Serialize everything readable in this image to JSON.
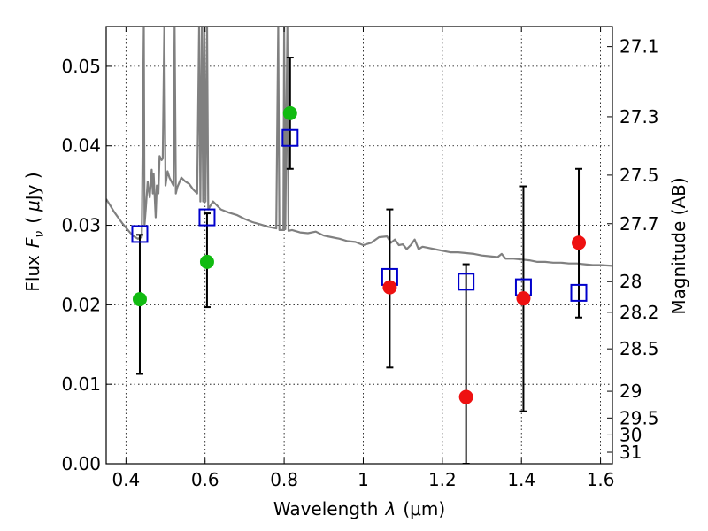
{
  "chart_data": {
    "type": "scatter",
    "xlabel_text": "Wavelength",
    "xlabel_symbol": "λ",
    "xlabel_unit": "(μm)",
    "ylabel_text": "Flux",
    "ylabel_symbol": "F",
    "ylabel_subscript": "ν",
    "ylabel_unit_open": "(",
    "ylabel_unit_mu": "μ",
    "ylabel_unit_rest": "Jy )",
    "y2label": "Magnitude (AB)",
    "xlim": [
      0.35,
      1.63
    ],
    "ylim": [
      0.0,
      0.055
    ],
    "grid": true,
    "x_ticks": [
      {
        "v": 0.4,
        "label": "0.4"
      },
      {
        "v": 0.6,
        "label": "0.6"
      },
      {
        "v": 0.8,
        "label": "0.8"
      },
      {
        "v": 1.0,
        "label": "1"
      },
      {
        "v": 1.2,
        "label": "1.2"
      },
      {
        "v": 1.4,
        "label": "1.4"
      },
      {
        "v": 1.6,
        "label": "1.6"
      }
    ],
    "y_ticks": [
      {
        "v": 0.0,
        "label": "0.00"
      },
      {
        "v": 0.01,
        "label": "0.01"
      },
      {
        "v": 0.02,
        "label": "0.02"
      },
      {
        "v": 0.03,
        "label": "0.03"
      },
      {
        "v": 0.04,
        "label": "0.04"
      },
      {
        "v": 0.05,
        "label": "0.05"
      }
    ],
    "y2_ticks": [
      {
        "mag": 27.1,
        "label": "27.1"
      },
      {
        "mag": 27.3,
        "label": "27.3"
      },
      {
        "mag": 27.5,
        "label": "27.5"
      },
      {
        "mag": 27.7,
        "label": "27.7"
      },
      {
        "mag": 28.0,
        "label": "28"
      },
      {
        "mag": 28.2,
        "label": "28.2"
      },
      {
        "mag": 28.5,
        "label": "28.5"
      },
      {
        "mag": 29.0,
        "label": "29"
      },
      {
        "mag": 29.5,
        "label": "29.5"
      },
      {
        "mag": 30.0,
        "label": "30"
      },
      {
        "mag": 31.0,
        "label": "31"
      }
    ],
    "series": [
      {
        "kind": "line",
        "color": "#808080",
        "points": [
          [
            0.35,
            0.0333
          ],
          [
            0.36,
            0.0325
          ],
          [
            0.37,
            0.0317
          ],
          [
            0.38,
            0.031
          ],
          [
            0.39,
            0.0303
          ],
          [
            0.4,
            0.0297
          ],
          [
            0.41,
            0.0291
          ],
          [
            0.42,
            0.0286
          ],
          [
            0.43,
            0.0283
          ],
          [
            0.44,
            0.0285
          ],
          [
            0.445,
            0.055
          ],
          [
            0.447,
            0.03
          ],
          [
            0.45,
            0.032
          ],
          [
            0.455,
            0.0355
          ],
          [
            0.46,
            0.0335
          ],
          [
            0.465,
            0.037
          ],
          [
            0.468,
            0.034
          ],
          [
            0.47,
            0.0365
          ],
          [
            0.475,
            0.031
          ],
          [
            0.478,
            0.035
          ],
          [
            0.482,
            0.034
          ],
          [
            0.485,
            0.0387
          ],
          [
            0.49,
            0.0382
          ],
          [
            0.493,
            0.0384
          ],
          [
            0.497,
            0.055
          ],
          [
            0.5,
            0.035
          ],
          [
            0.505,
            0.0368
          ],
          [
            0.51,
            0.036
          ],
          [
            0.52,
            0.035
          ],
          [
            0.523,
            0.055
          ],
          [
            0.526,
            0.034
          ],
          [
            0.53,
            0.0348
          ],
          [
            0.54,
            0.036
          ],
          [
            0.55,
            0.0355
          ],
          [
            0.56,
            0.0352
          ],
          [
            0.57,
            0.0345
          ],
          [
            0.58,
            0.034
          ],
          [
            0.585,
            0.055
          ],
          [
            0.588,
            0.033
          ],
          [
            0.592,
            0.055
          ],
          [
            0.595,
            0.033
          ],
          [
            0.598,
            0.055
          ],
          [
            0.601,
            0.033
          ],
          [
            0.605,
            0.055
          ],
          [
            0.608,
            0.032
          ],
          [
            0.62,
            0.033
          ],
          [
            0.64,
            0.032
          ],
          [
            0.66,
            0.0316
          ],
          [
            0.68,
            0.0313
          ],
          [
            0.7,
            0.0308
          ],
          [
            0.72,
            0.0304
          ],
          [
            0.74,
            0.0301
          ],
          [
            0.76,
            0.0298
          ],
          [
            0.78,
            0.0296
          ],
          [
            0.785,
            0.055
          ],
          [
            0.788,
            0.0294
          ],
          [
            0.798,
            0.0294
          ],
          [
            0.8,
            0.055
          ],
          [
            0.803,
            0.0295
          ],
          [
            0.808,
            0.055
          ],
          [
            0.811,
            0.0293
          ],
          [
            0.82,
            0.0294
          ],
          [
            0.84,
            0.0291
          ],
          [
            0.86,
            0.029
          ],
          [
            0.88,
            0.0292
          ],
          [
            0.9,
            0.0287
          ],
          [
            0.92,
            0.0285
          ],
          [
            0.94,
            0.0283
          ],
          [
            0.96,
            0.028
          ],
          [
            0.98,
            0.0279
          ],
          [
            1.0,
            0.0275
          ],
          [
            1.02,
            0.0278
          ],
          [
            1.04,
            0.0285
          ],
          [
            1.06,
            0.0286
          ],
          [
            1.07,
            0.0278
          ],
          [
            1.08,
            0.0282
          ],
          [
            1.09,
            0.0275
          ],
          [
            1.1,
            0.0276
          ],
          [
            1.11,
            0.027
          ],
          [
            1.12,
            0.0275
          ],
          [
            1.13,
            0.0282
          ],
          [
            1.14,
            0.027
          ],
          [
            1.15,
            0.0273
          ],
          [
            1.16,
            0.0272
          ],
          [
            1.18,
            0.027
          ],
          [
            1.2,
            0.0268
          ],
          [
            1.22,
            0.0266
          ],
          [
            1.24,
            0.0266
          ],
          [
            1.26,
            0.0265
          ],
          [
            1.28,
            0.0264
          ],
          [
            1.3,
            0.0262
          ],
          [
            1.32,
            0.0261
          ],
          [
            1.34,
            0.026
          ],
          [
            1.35,
            0.0264
          ],
          [
            1.36,
            0.0258
          ],
          [
            1.38,
            0.0258
          ],
          [
            1.4,
            0.0257
          ],
          [
            1.42,
            0.0256
          ],
          [
            1.44,
            0.0254
          ],
          [
            1.46,
            0.0254
          ],
          [
            1.48,
            0.0253
          ],
          [
            1.5,
            0.0253
          ],
          [
            1.52,
            0.0252
          ],
          [
            1.54,
            0.0252
          ],
          [
            1.56,
            0.0251
          ],
          [
            1.58,
            0.025
          ],
          [
            1.6,
            0.025
          ],
          [
            1.63,
            0.0249
          ]
        ]
      },
      {
        "kind": "errorbar",
        "color": "#000000",
        "points": [
          {
            "x": 0.435,
            "lo": 0.0113,
            "hi": 0.0288
          },
          {
            "x": 0.605,
            "lo": 0.0197,
            "hi": 0.0315
          },
          {
            "x": 0.815,
            "lo": 0.0371,
            "hi": 0.0511
          },
          {
            "x": 1.067,
            "lo": 0.0121,
            "hi": 0.032
          },
          {
            "x": 1.26,
            "lo": 0.0,
            "hi": 0.0251
          },
          {
            "x": 1.405,
            "lo": 0.0066,
            "hi": 0.0349
          },
          {
            "x": 1.545,
            "lo": 0.0184,
            "hi": 0.0371
          }
        ]
      },
      {
        "kind": "square",
        "color": "#0000cc",
        "points": [
          [
            0.435,
            0.0289
          ],
          [
            0.605,
            0.031
          ],
          [
            0.815,
            0.041
          ],
          [
            1.067,
            0.0235
          ],
          [
            1.26,
            0.0229
          ],
          [
            1.405,
            0.0222
          ],
          [
            1.545,
            0.0215
          ]
        ]
      },
      {
        "kind": "circle",
        "color": "#11bb11",
        "points": [
          [
            0.435,
            0.0207
          ],
          [
            0.605,
            0.0254
          ],
          [
            0.815,
            0.0441
          ]
        ]
      },
      {
        "kind": "circle",
        "color": "#ee1111",
        "points": [
          [
            1.067,
            0.0222
          ],
          [
            1.26,
            0.0084
          ],
          [
            1.405,
            0.0208
          ],
          [
            1.545,
            0.0278
          ]
        ]
      }
    ]
  }
}
